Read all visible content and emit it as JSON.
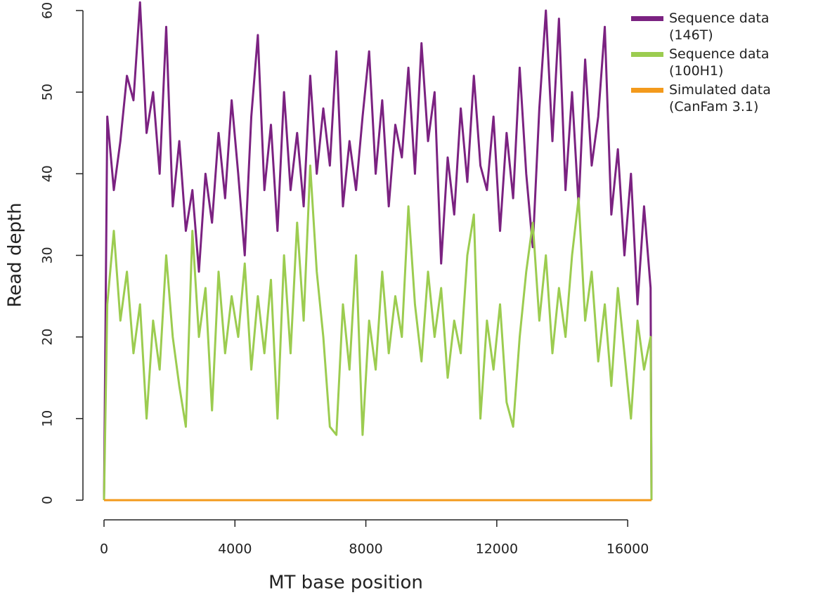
{
  "chart_data": {
    "type": "line",
    "xlabel": "MT base position",
    "ylabel": "Read depth",
    "x": [
      0,
      100,
      300,
      500,
      700,
      900,
      1100,
      1300,
      1500,
      1700,
      1900,
      2100,
      2300,
      2500,
      2700,
      2900,
      3100,
      3300,
      3500,
      3700,
      3900,
      4100,
      4300,
      4500,
      4700,
      4900,
      5100,
      5300,
      5500,
      5700,
      5900,
      6100,
      6300,
      6500,
      6700,
      6900,
      7100,
      7300,
      7500,
      7700,
      7900,
      8100,
      8300,
      8500,
      8700,
      8900,
      9100,
      9300,
      9500,
      9700,
      9900,
      10100,
      10300,
      10500,
      10700,
      10900,
      11100,
      11300,
      11500,
      11700,
      11900,
      12100,
      12300,
      12500,
      12700,
      12900,
      13100,
      13300,
      13500,
      13700,
      13900,
      14100,
      14300,
      14500,
      14700,
      14900,
      15100,
      15300,
      15500,
      15700,
      15900,
      16100,
      16300,
      16500,
      16700,
      16727
    ],
    "series": [
      {
        "name": "Sequence data (146T)",
        "color": "#7b2281",
        "values": [
          0,
          47,
          38,
          44,
          52,
          49,
          61,
          45,
          50,
          40,
          58,
          36,
          44,
          33,
          38,
          28,
          40,
          34,
          45,
          37,
          49,
          40,
          30,
          47,
          57,
          38,
          46,
          33,
          50,
          38,
          45,
          36,
          52,
          40,
          48,
          41,
          55,
          36,
          44,
          38,
          47,
          55,
          40,
          49,
          36,
          46,
          42,
          53,
          40,
          56,
          44,
          50,
          29,
          42,
          35,
          48,
          39,
          52,
          41,
          38,
          47,
          33,
          45,
          37,
          53,
          40,
          31,
          48,
          60,
          44,
          59,
          38,
          50,
          36,
          54,
          41,
          47,
          58,
          35,
          43,
          30,
          40,
          24,
          36,
          26,
          0
        ]
      },
      {
        "name": "Sequence data (100H1)",
        "color": "#9ccc50",
        "values": [
          0,
          24,
          33,
          22,
          28,
          18,
          24,
          10,
          22,
          16,
          30,
          20,
          14,
          9,
          33,
          20,
          26,
          11,
          28,
          18,
          25,
          20,
          29,
          16,
          25,
          18,
          27,
          10,
          30,
          18,
          34,
          22,
          41,
          28,
          20,
          9,
          8,
          24,
          16,
          30,
          8,
          22,
          16,
          28,
          18,
          25,
          20,
          36,
          24,
          17,
          28,
          20,
          26,
          15,
          22,
          18,
          30,
          35,
          10,
          22,
          16,
          24,
          12,
          9,
          20,
          28,
          34,
          22,
          30,
          18,
          26,
          20,
          30,
          37,
          22,
          28,
          17,
          24,
          14,
          26,
          18,
          10,
          22,
          16,
          20,
          0
        ]
      },
      {
        "name": "Simulated data (CanFam 3.1)",
        "color": "#f39a1c",
        "values": [
          0,
          0,
          0,
          0,
          0,
          0,
          0,
          0,
          0,
          0,
          0,
          0,
          0,
          0,
          0,
          0,
          0,
          0,
          0,
          0,
          0,
          0,
          0,
          0,
          0,
          0,
          0,
          0,
          0,
          0,
          0,
          0,
          0,
          0,
          0,
          0,
          0,
          0,
          0,
          0,
          0,
          0,
          0,
          0,
          0,
          0,
          0,
          0,
          0,
          0,
          0,
          0,
          0,
          0,
          0,
          0,
          0,
          0,
          0,
          0,
          0,
          0,
          0,
          0,
          0,
          0,
          0,
          0,
          0,
          0,
          0,
          0,
          0,
          0,
          0,
          0,
          0,
          0,
          0,
          0,
          0,
          0,
          0,
          0,
          0,
          0
        ]
      }
    ],
    "xlim": [
      0,
      16727
    ],
    "xticks": [
      0,
      4000,
      8000,
      12000,
      16000
    ],
    "ylim": [
      0,
      60
    ],
    "yticks": [
      0,
      10,
      20,
      30,
      40,
      50,
      60
    ],
    "grid": false,
    "legend": "top-right"
  }
}
